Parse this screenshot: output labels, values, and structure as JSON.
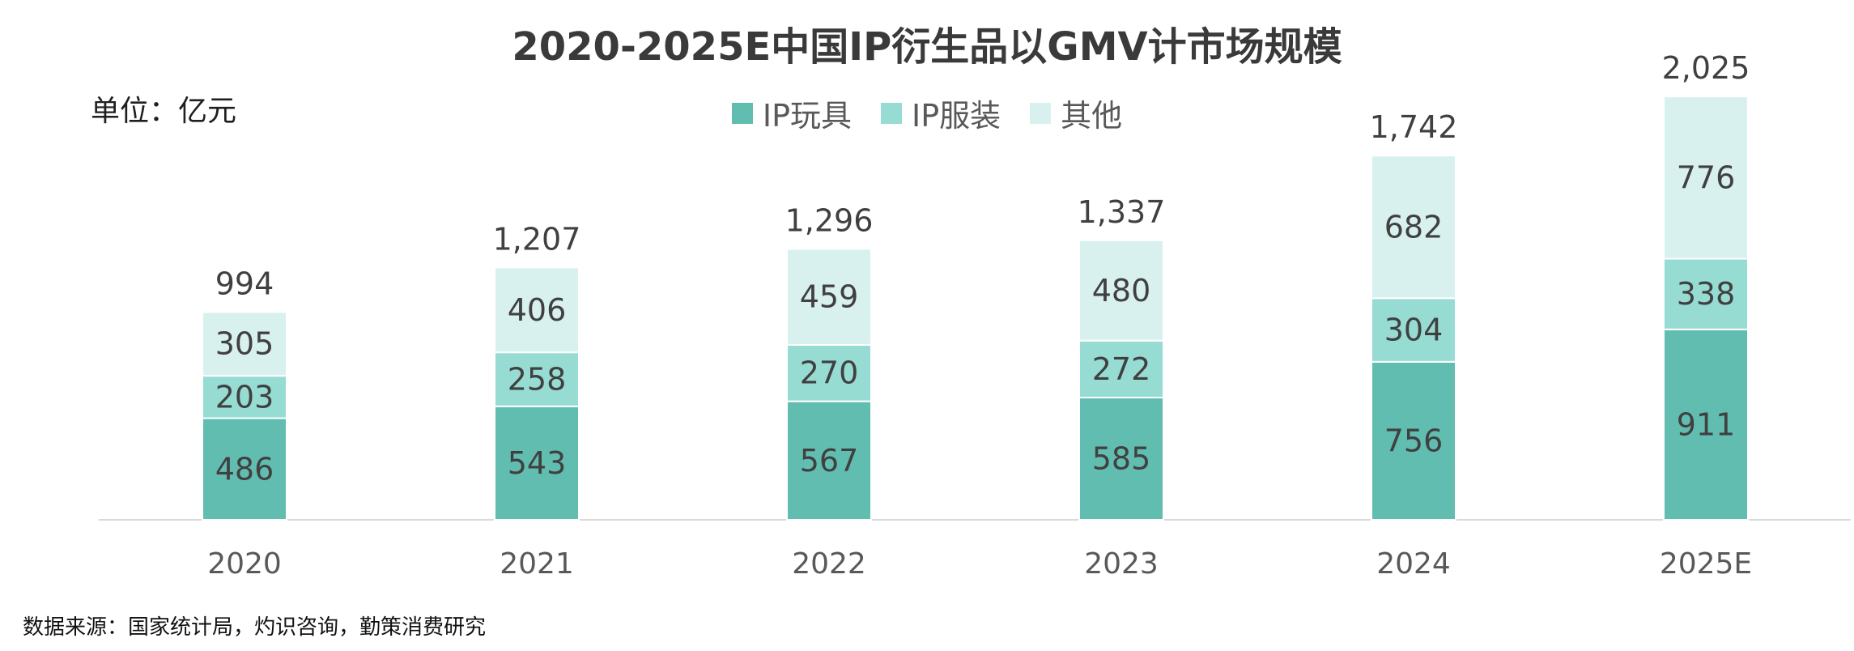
{
  "chart_data": {
    "type": "bar",
    "stacked": true,
    "title": "2020-2025E中国IP衍生品以GMV计市场规模",
    "unit_label": "单位：亿元",
    "categories": [
      "2020",
      "2021",
      "2022",
      "2023",
      "2024",
      "2025E"
    ],
    "series": [
      {
        "name": "IP玩具",
        "color": "#62bdb1",
        "values": [
          486,
          543,
          567,
          585,
          756,
          911
        ]
      },
      {
        "name": "IP服装",
        "color": "#96dcd3",
        "values": [
          203,
          258,
          270,
          272,
          304,
          338
        ]
      },
      {
        "name": "其他",
        "color": "#d8f1ef",
        "values": [
          305,
          406,
          459,
          480,
          682,
          776
        ]
      }
    ],
    "totals": [
      "994",
      "1,207",
      "1,296",
      "1,337",
      "1,742",
      "2,025"
    ],
    "legend_position": "top-center",
    "grid": false,
    "source": "数据来源：国家统计局，灼识咨询，勤策消费研究"
  }
}
